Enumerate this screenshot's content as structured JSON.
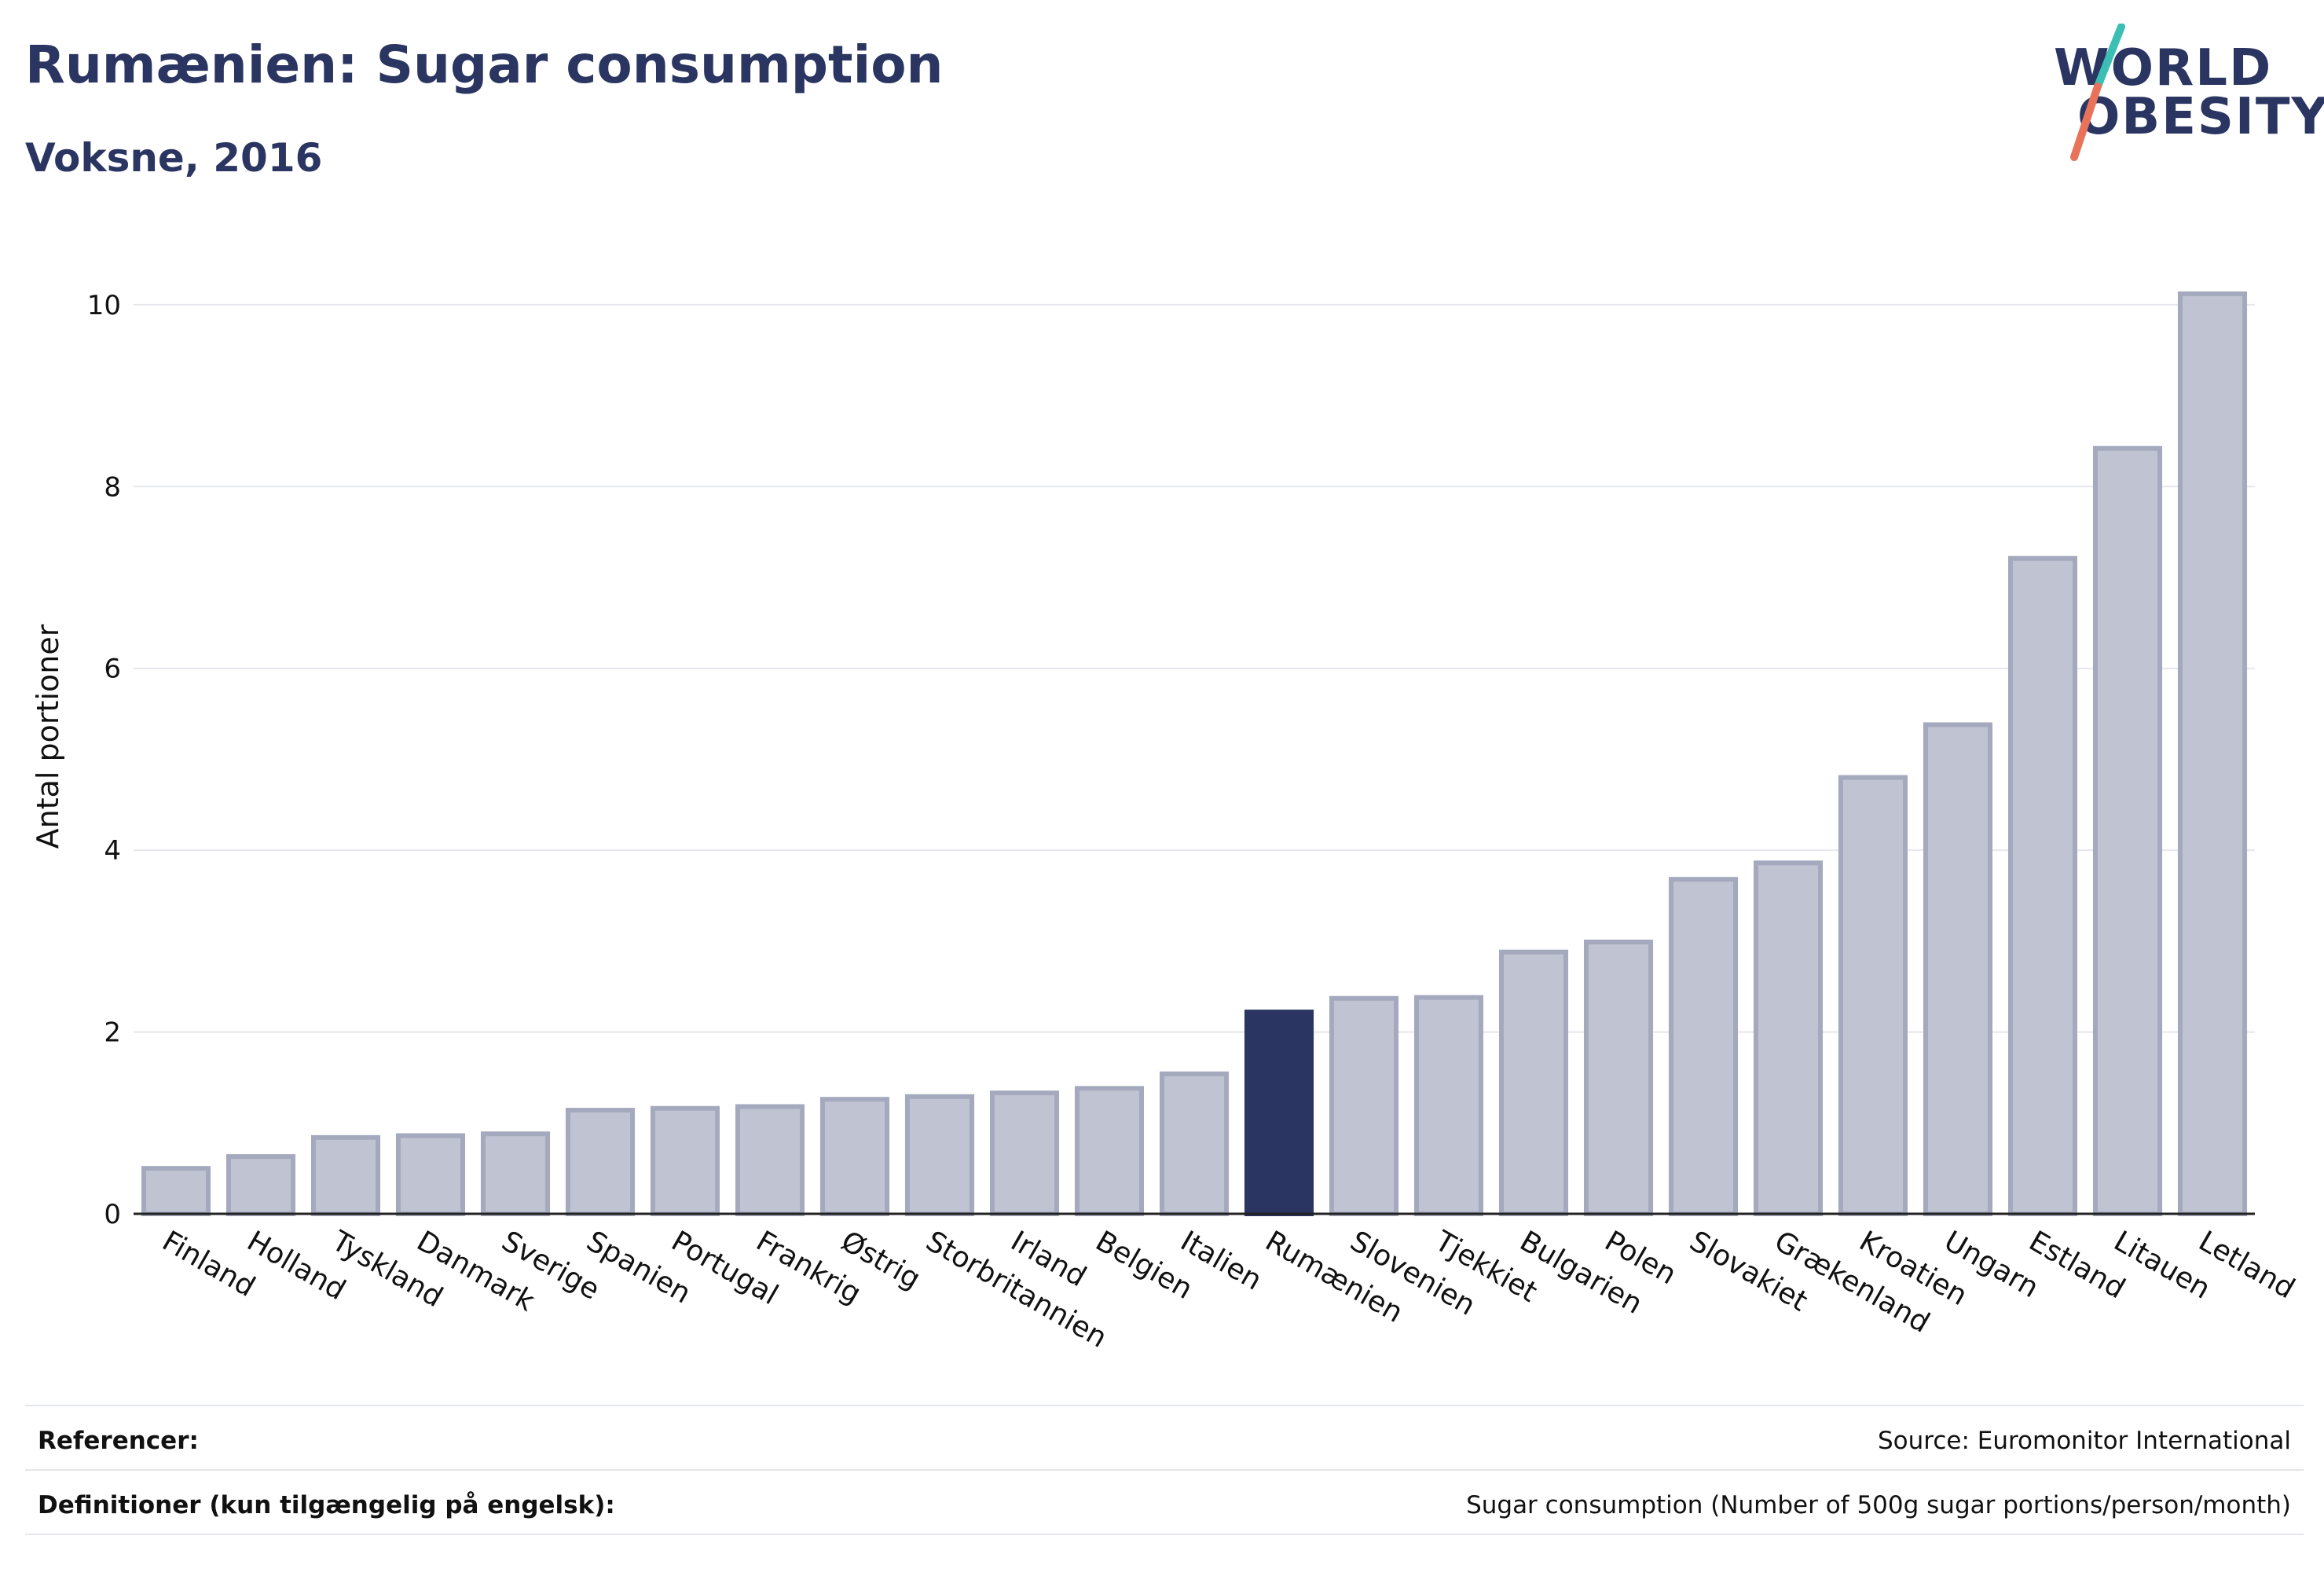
{
  "header": {
    "title": "Rumænien: Sugar consumption",
    "subtitle": "Voksne, 2016"
  },
  "logo": {
    "line1": "WORLD",
    "line2": "OBESITY",
    "accent_teal": "#3bbfb5",
    "accent_coral": "#e8735a"
  },
  "colors": {
    "bar_default": "#c0c3d1",
    "bar_border": "#a4a9be",
    "bar_highlight": "#2a3561",
    "grid": "#e6e7ec",
    "axis_text": "#111111"
  },
  "chart_data": {
    "type": "bar",
    "title": "Rumænien: Sugar consumption",
    "subtitle": "Voksne, 2016",
    "xlabel": "",
    "ylabel": "Antal portioner",
    "ylim": [
      0,
      10.5
    ],
    "yticks": [
      0,
      2,
      4,
      6,
      8,
      10
    ],
    "grid": true,
    "highlight": "Rumænien",
    "categories": [
      "Finland",
      "Holland",
      "Tyskland",
      "Danmark",
      "Sverige",
      "Spanien",
      "Portugal",
      "Frankrig",
      "Østrig",
      "Storbritannien",
      "Irland",
      "Belgien",
      "Italien",
      "Rumænien",
      "Slovenien",
      "Tjekkiet",
      "Bulgarien",
      "Polen",
      "Slovakiet",
      "Grækenland",
      "Kroatien",
      "Ungarn",
      "Estland",
      "Litauen",
      "Letland"
    ],
    "values": [
      0.5,
      0.63,
      0.84,
      0.86,
      0.88,
      1.14,
      1.16,
      1.18,
      1.26,
      1.29,
      1.33,
      1.38,
      1.54,
      2.22,
      2.37,
      2.38,
      2.88,
      2.99,
      3.68,
      3.86,
      4.8,
      5.38,
      7.21,
      8.42,
      10.12
    ]
  },
  "footer": {
    "references_label": "Referencer:",
    "references_value": "Source: Euromonitor International",
    "definitions_label": "Definitioner (kun tilgængelig på engelsk):",
    "definitions_value": "Sugar consumption (Number of 500g sugar portions/person/month)"
  }
}
